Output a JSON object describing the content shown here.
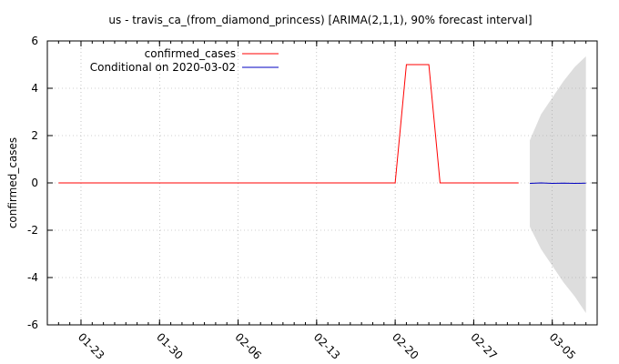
{
  "chart_data": {
    "type": "line",
    "title": "us - travis_ca_(from_diamond_princess) [ARIMA(2,1,1), 90% forecast interval]",
    "xlabel": "",
    "ylabel": "confirmed_cases",
    "xlim": [
      "2020-01-20",
      "2020-03-09"
    ],
    "ylim": [
      -6,
      6
    ],
    "yticks": [
      -6,
      -4,
      -2,
      0,
      2,
      4,
      6
    ],
    "xticks": [
      "01-23",
      "01-30",
      "02-06",
      "02-13",
      "02-20",
      "02-27",
      "03-05"
    ],
    "xtick_dates": [
      "2020-01-23",
      "2020-01-30",
      "2020-02-06",
      "2020-02-13",
      "2020-02-20",
      "2020-02-27",
      "2020-03-05"
    ],
    "grid": true,
    "legend_position": "top-left",
    "series": [
      {
        "name": "confirmed_cases",
        "color": "#ff0000",
        "points": [
          {
            "x": "2020-01-21",
            "y": 0
          },
          {
            "x": "2020-02-20",
            "y": 0
          },
          {
            "x": "2020-02-21",
            "y": 5
          },
          {
            "x": "2020-02-23",
            "y": 5
          },
          {
            "x": "2020-02-24",
            "y": 0
          },
          {
            "x": "2020-03-02",
            "y": 0
          }
        ]
      },
      {
        "name": "Conditional on 2020-03-02",
        "color": "#0000c0",
        "points": [
          {
            "x": "2020-03-03",
            "y": -0.02
          },
          {
            "x": "2020-03-04",
            "y": 0.0
          },
          {
            "x": "2020-03-05",
            "y": -0.02
          },
          {
            "x": "2020-03-06",
            "y": -0.01
          },
          {
            "x": "2020-03-07",
            "y": -0.02
          },
          {
            "x": "2020-03-08",
            "y": -0.01
          }
        ]
      }
    ],
    "forecast_interval": {
      "level": "90%",
      "color": "#dddddd",
      "x": [
        "2020-03-03",
        "2020-03-04",
        "2020-03-05",
        "2020-03-06",
        "2020-03-07",
        "2020-03-08"
      ],
      "upper": [
        1.8,
        2.9,
        3.6,
        4.3,
        4.9,
        5.35
      ],
      "lower": [
        -1.85,
        -2.8,
        -3.5,
        -4.2,
        -4.8,
        -5.5
      ]
    }
  }
}
